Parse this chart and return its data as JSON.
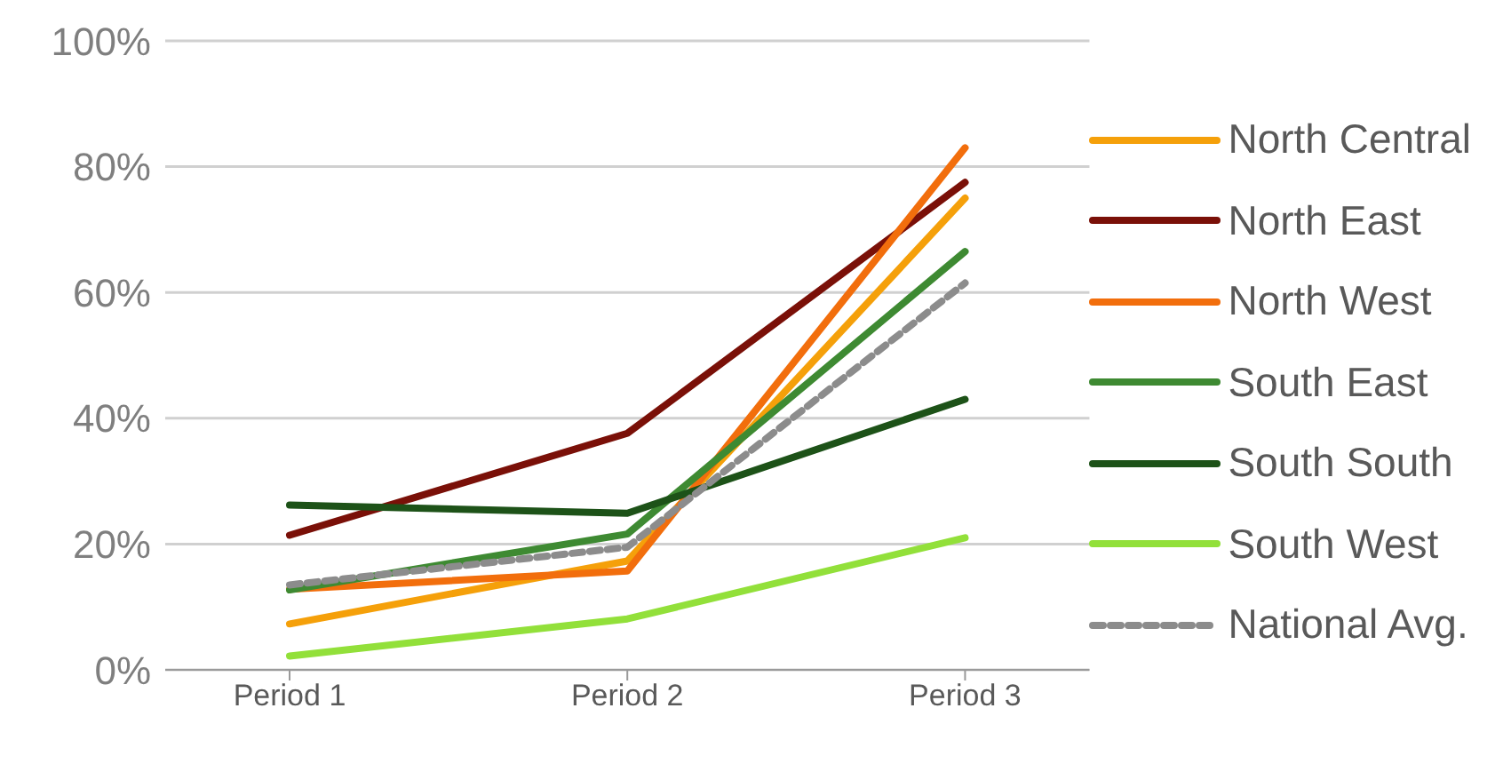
{
  "chart_data": {
    "type": "line",
    "categories": [
      "Period 1",
      "Period 2",
      "Period 3"
    ],
    "series": [
      {
        "name": "North Central",
        "color": "#f5a00a",
        "values": [
          7.3,
          17.3,
          75
        ]
      },
      {
        "name": "North East",
        "color": "#7a1008",
        "values": [
          21.4,
          37.6,
          77.5
        ]
      },
      {
        "name": "North West",
        "color": "#f26e0c",
        "values": [
          12.8,
          15.7,
          83
        ]
      },
      {
        "name": "South East",
        "color": "#3e8a32",
        "values": [
          12.7,
          21.6,
          66.5
        ]
      },
      {
        "name": "South South",
        "color": "#1d5218",
        "values": [
          26.2,
          24.9,
          43
        ]
      },
      {
        "name": "South West",
        "color": "#92e03a",
        "values": [
          2.2,
          8.1,
          21
        ]
      },
      {
        "name": "National Avg.",
        "color": "#8c8c8c",
        "values": [
          13.5,
          19.5,
          61.5
        ],
        "line_style": "dashed"
      }
    ],
    "ylim": [
      0,
      100
    ],
    "yticks": [
      {
        "value": 0,
        "label": "0%"
      },
      {
        "value": 20,
        "label": "20%"
      },
      {
        "value": 40,
        "label": "40%"
      },
      {
        "value": 60,
        "label": "60%"
      },
      {
        "value": 80,
        "label": "80%"
      },
      {
        "value": 100,
        "label": "100%"
      }
    ],
    "grid": "y",
    "legend": "right",
    "marker": "none",
    "line_style": "solid"
  }
}
